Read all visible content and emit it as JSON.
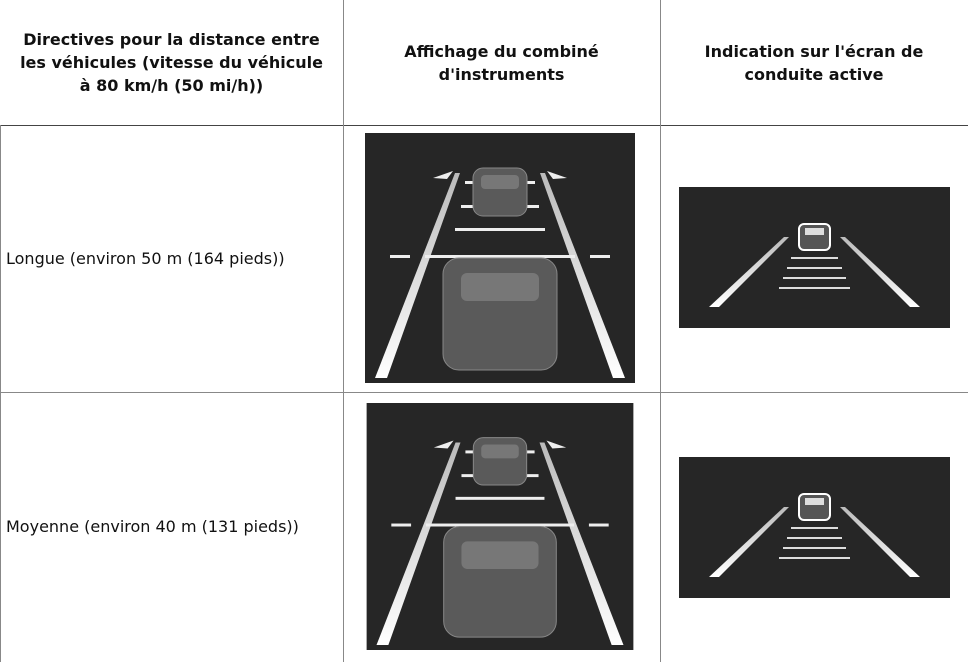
{
  "table": {
    "header": [
      "Directives pour la distance entre les véhicules (vitesse du véhicule à 80 km/h (50 mi/h))",
      "Affichage du combiné d'instruments",
      "Indication sur l'écran de conduite active"
    ],
    "rows": [
      [
        "Longue (environ 50 m (164 pieds))"
      ],
      [
        "Moyenne (environ 40 m (131 pieds))"
      ]
    ]
  }
}
